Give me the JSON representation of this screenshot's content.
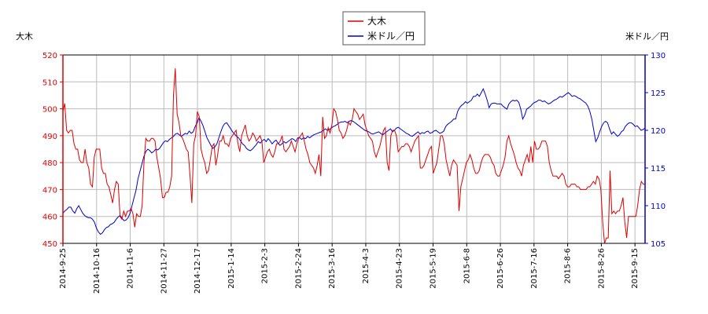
{
  "colors": {
    "series_a": "#dd0000",
    "series_b": "#0000cc",
    "left_axis": "#dd0000",
    "right_axis": "#0000cc",
    "grid": "#bbbbbb",
    "frame": "#000000"
  },
  "chart_data": {
    "type": "line",
    "y_left_label": "大木",
    "y_right_label": "米ドル／円",
    "legend_position": "top-center",
    "grid": true,
    "x_ticks": [
      "2014-9-25",
      "2014-10-16",
      "2014-11-6",
      "2014-11-27",
      "2014-12-17",
      "2015-1-14",
      "2015-2-3",
      "2015-2-24",
      "2015-3-16",
      "2015-4-3",
      "2015-4-23",
      "2015-5-19",
      "2015-6-8",
      "2015-6-26",
      "2015-7-16",
      "2015-8-6",
      "2015-8-26",
      "2015-9-15"
    ],
    "y_left_ticks": [
      450,
      460,
      470,
      480,
      490,
      500,
      510,
      520
    ],
    "y_right_ticks": [
      105,
      110,
      115,
      120,
      125,
      130
    ],
    "y_left_range": [
      450,
      520
    ],
    "y_right_range": [
      105,
      130
    ],
    "series": [
      {
        "name": "大木",
        "axis": "left",
        "values": [
          499,
          502,
          492,
          491,
          492,
          492,
          487,
          485,
          485,
          481,
          480,
          480,
          485,
          480,
          478,
          472,
          471,
          482,
          485,
          485,
          485,
          478,
          476,
          476,
          472,
          471,
          468,
          465,
          470,
          473,
          472,
          460,
          459,
          462,
          460,
          462,
          462,
          463,
          461,
          456,
          461,
          460,
          460,
          464,
          480,
          489,
          488,
          488,
          489,
          489,
          488,
          482,
          478,
          474,
          467,
          467,
          469,
          469,
          471,
          475,
          505,
          515,
          498,
          495,
          490,
          489,
          487,
          485,
          484,
          475,
          465,
          487,
          490,
          499,
          497,
          485,
          482,
          480,
          476,
          477,
          481,
          486,
          487,
          479,
          483,
          488,
          488,
          490,
          487,
          487,
          486,
          489,
          490,
          491,
          492,
          487,
          484,
          490,
          492,
          494,
          490,
          488,
          489,
          491,
          490,
          488,
          489,
          490,
          488,
          480,
          482,
          484,
          485,
          483,
          482,
          484,
          487,
          487,
          488,
          490,
          485,
          484,
          485,
          486,
          488,
          486,
          484,
          487,
          489,
          490,
          491,
          488,
          485,
          483,
          480,
          479,
          478,
          476,
          479,
          483,
          475,
          497,
          489,
          490,
          493,
          491,
          494,
          500,
          499,
          496,
          492,
          491,
          489,
          490,
          492,
          495,
          494,
          496,
          500,
          499,
          498,
          496,
          497,
          498,
          494,
          492,
          490,
          489,
          488,
          484,
          482,
          484,
          486,
          489,
          492,
          493,
          480,
          477,
          490,
          492,
          492,
          490,
          484,
          485,
          486,
          486,
          487,
          487,
          486,
          484,
          486,
          488,
          489,
          490,
          478,
          478,
          479,
          481,
          483,
          485,
          486,
          476,
          478,
          480,
          485,
          490,
          490,
          487,
          481,
          478,
          475,
          479,
          481,
          480,
          479,
          462,
          471,
          474,
          477,
          480,
          481,
          483,
          481,
          478,
          476,
          476,
          477,
          480,
          482,
          483,
          483,
          483,
          482,
          480,
          479,
          476,
          475,
          475,
          477,
          479,
          482,
          488,
          490,
          487,
          485,
          483,
          480,
          478,
          477,
          475,
          479,
          481,
          483,
          480,
          486,
          480,
          488,
          485,
          485,
          486,
          488,
          488,
          488,
          486,
          480,
          477,
          475,
          475,
          475,
          474,
          475,
          476,
          475,
          472,
          471,
          471,
          472,
          472,
          472,
          471,
          471,
          470,
          470,
          470,
          470,
          471,
          471,
          472,
          473,
          472,
          475,
          474,
          470,
          458,
          450,
          452,
          452,
          477,
          461,
          462,
          461,
          462,
          462,
          464,
          467,
          458,
          452,
          460,
          460,
          460,
          460,
          460,
          464,
          470,
          473,
          472,
          472
        ]
      },
      {
        "name": "米ドル／円",
        "axis": "right",
        "values": [
          109.0,
          109.3,
          109.5,
          109.8,
          109.8,
          109.3,
          109.0,
          109.6,
          110.0,
          109.5,
          109.0,
          108.7,
          108.5,
          108.4,
          108.4,
          108.2,
          107.8,
          107.0,
          106.5,
          106.2,
          106.4,
          106.8,
          107.1,
          107.2,
          107.5,
          107.6,
          107.8,
          108.2,
          108.5,
          108.7,
          108.3,
          108.0,
          108.1,
          108.4,
          109.0,
          110.0,
          111.0,
          112.0,
          113.5,
          114.5,
          115.5,
          116.5,
          117.2,
          117.5,
          117.3,
          117.0,
          117.2,
          117.5,
          117.4,
          117.6,
          118.0,
          118.4,
          118.6,
          118.5,
          118.8,
          119.0,
          119.2,
          119.5,
          119.6,
          119.4,
          119.2,
          119.4,
          119.6,
          119.5,
          119.9,
          119.6,
          119.8,
          120.5,
          121.0,
          121.7,
          121.2,
          120.6,
          119.8,
          119.0,
          118.5,
          118.0,
          117.6,
          117.8,
          118.2,
          119.0,
          119.8,
          120.5,
          120.9,
          121.0,
          120.6,
          120.2,
          119.8,
          119.5,
          119.2,
          119.0,
          118.6,
          118.2,
          118.0,
          117.6,
          117.4,
          117.3,
          117.5,
          117.8,
          118.1,
          118.5,
          118.3,
          118.6,
          118.8,
          118.5,
          118.9,
          118.6,
          118.2,
          118.5,
          118.7,
          118.3,
          118.0,
          118.2,
          118.5,
          118.3,
          118.5,
          118.7,
          118.9,
          118.8,
          118.5,
          119.0,
          119.0,
          118.8,
          119.0,
          118.9,
          119.2,
          119.0,
          119.2,
          119.4,
          119.5,
          119.6,
          119.7,
          119.8,
          120.0,
          120.2,
          120.0,
          120.1,
          120.3,
          120.5,
          120.6,
          120.8,
          121.0,
          121.1,
          121.1,
          121.2,
          121.0,
          121.2,
          121.3,
          121.2,
          121.0,
          120.8,
          120.6,
          120.4,
          120.2,
          120.0,
          119.9,
          119.8,
          119.6,
          119.5,
          119.6,
          119.7,
          119.8,
          119.6,
          119.4,
          119.6,
          119.8,
          120.0,
          120.2,
          119.8,
          120.0,
          120.3,
          120.4,
          120.2,
          120.0,
          119.8,
          119.6,
          119.5,
          119.3,
          119.2,
          119.4,
          119.6,
          119.8,
          119.5,
          119.7,
          119.6,
          119.8,
          119.9,
          119.6,
          119.7,
          119.9,
          120.0,
          119.8,
          119.6,
          119.7,
          119.9,
          120.5,
          120.8,
          121.0,
          121.2,
          121.5,
          121.5,
          122.5,
          123.0,
          123.3,
          123.5,
          123.8,
          123.6,
          123.8,
          124.0,
          124.5,
          124.5,
          124.8,
          124.5,
          125.0,
          125.5,
          124.8,
          124.0,
          123.0,
          123.5,
          123.6,
          123.6,
          123.5,
          123.5,
          123.5,
          123.2,
          123.0,
          122.8,
          123.5,
          123.8,
          124.0,
          123.9,
          124.0,
          123.7,
          122.8,
          121.5,
          122.0,
          122.8,
          123.0,
          123.2,
          123.5,
          123.7,
          123.8,
          124.0,
          124.0,
          123.8,
          123.9,
          123.7,
          123.5,
          123.6,
          123.8,
          124.0,
          124.1,
          124.3,
          124.5,
          124.4,
          124.6,
          124.8,
          125.0,
          124.8,
          124.5,
          124.6,
          124.5,
          124.3,
          124.2,
          124.0,
          123.8,
          123.6,
          123.2,
          122.5,
          121.5,
          120.0,
          118.5,
          119.0,
          119.8,
          120.5,
          121.0,
          121.2,
          121.0,
          120.2,
          119.5,
          119.8,
          119.5,
          119.2,
          119.4,
          119.8,
          120.0,
          120.5,
          120.8,
          121.0,
          121.0,
          120.8,
          120.5,
          120.6,
          120.3,
          120.0,
          120.1,
          120.3
        ]
      }
    ]
  }
}
